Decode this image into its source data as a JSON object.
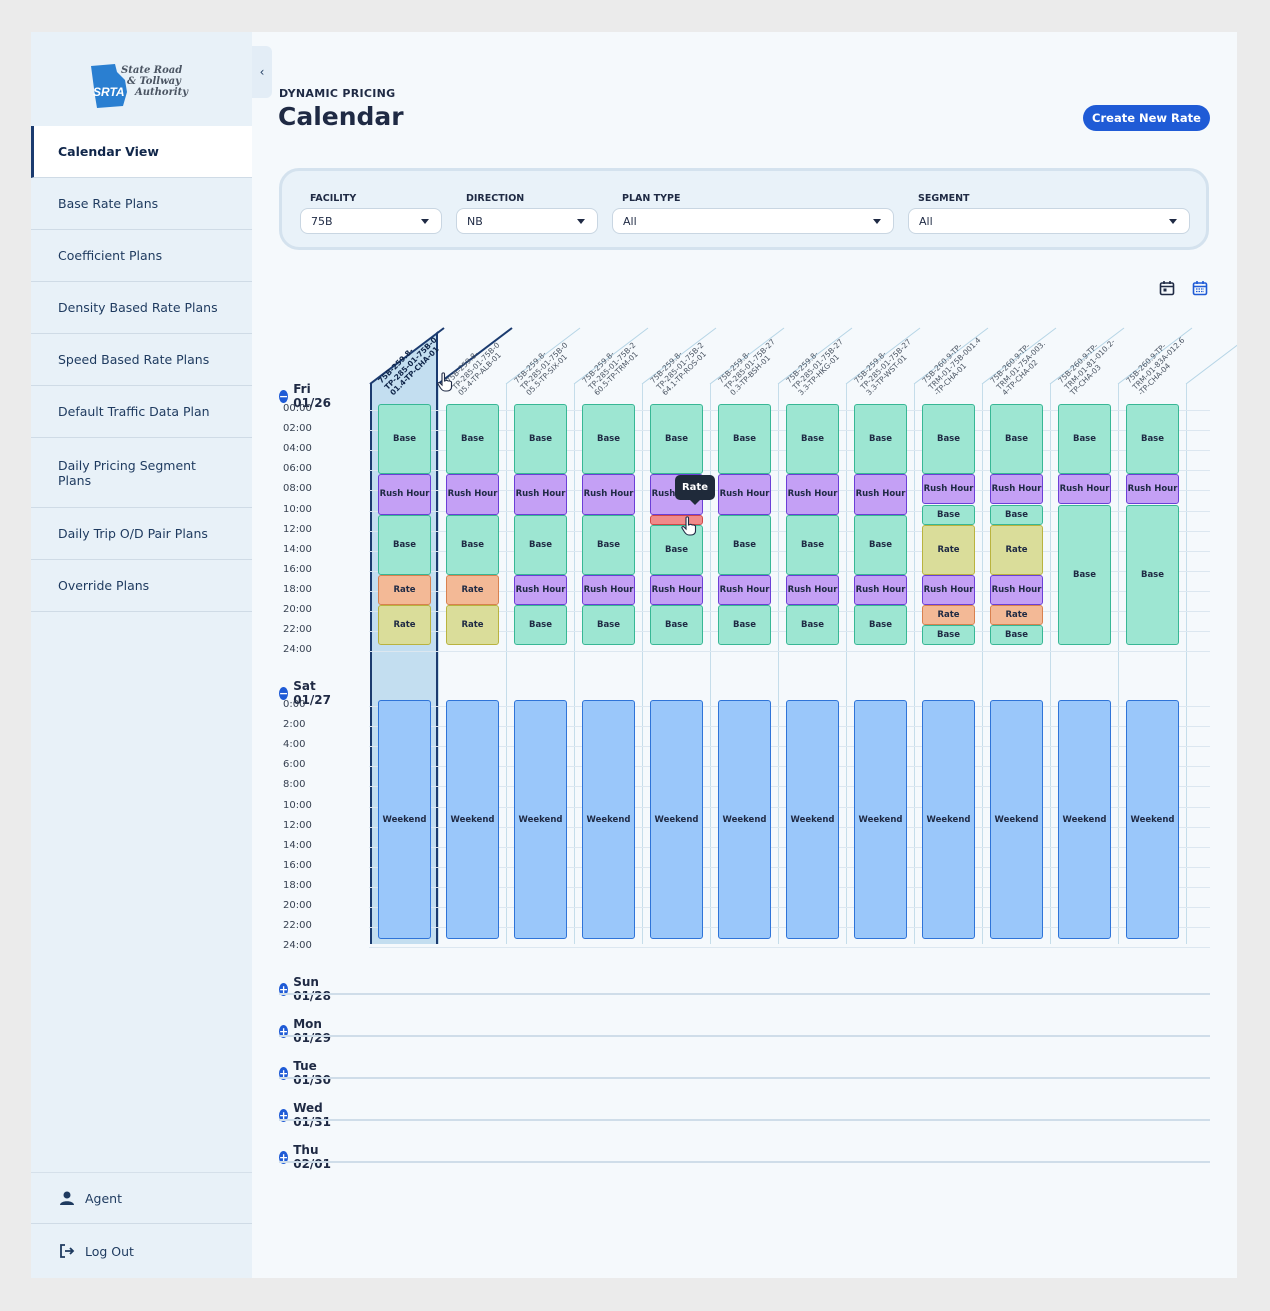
{
  "logo": {
    "line1": "State Road",
    "line2": "& Tollway",
    "line3": "Authority",
    "mark": "SRTA"
  },
  "sidebar": {
    "items": [
      {
        "label": "Calendar View"
      },
      {
        "label": "Base Rate Plans"
      },
      {
        "label": "Coefficient Plans"
      },
      {
        "label": "Density Based Rate Plans"
      },
      {
        "label": "Speed Based Rate Plans"
      },
      {
        "label": "Default Traffic Data Plan"
      },
      {
        "label": "Daily Pricing Segment Plans"
      },
      {
        "label": "Daily Trip O/D Pair Plans"
      },
      {
        "label": "Override Plans"
      }
    ],
    "user_label": "Agent",
    "logout_label": "Log Out"
  },
  "header": {
    "eyebrow": "DYNAMIC PRICING",
    "title": "Calendar",
    "create_label": "Create New Rate"
  },
  "filters": [
    {
      "label": "FACILITY",
      "value": "75B"
    },
    {
      "label": "DIRECTION",
      "value": "NB"
    },
    {
      "label": "PLAN TYPE",
      "value": "All"
    },
    {
      "label": "SEGMENT",
      "value": "All"
    }
  ],
  "columns": [
    "75B-259.8-\nTP-285-01-75B-0\n01.4-TP-CHA-01",
    "75B-259.8-\nTP-285-01-75B-0\n05.4-TP-ALB-01",
    "75B-259.8-\nTP-285-01-75B-0\n05.5-TP-SIX-01",
    "75B-259.8-\nTP-285-01-75B-2\n60.5-TP-TRM-01",
    "75B-259.8-\nTP-285-01-75B-2\n64.1-TP-ROS-01",
    "75B-259.8-\nTP-285-01-75B-27\n0.3-TP-BSH-01",
    "75B-259.8-\nTP-285-01-75B-27\n3.3-TP-HKG-01",
    "75B-259.8-\nTP-285-01-75B-27\n3.3-TP-WST-01",
    "75B-260.9-TP-\nTRM-01-75B-001.4\n-TP-CHA-01",
    "75B-260.9-TP-\nTRM-01-75A-003.\n4-TP-CHA-02",
    "75B-260.9-TP-\nTRM-01-81-010.2-\nTP-CHA-03",
    "75B-260.9-TP-\nTRM-01-83A-012.6\n-TP-CHA-04"
  ],
  "days": {
    "fri": {
      "label": "Fri 01/26"
    },
    "sat": {
      "label": "Sat 01/27"
    },
    "sun": {
      "label": "Sun 01/28"
    },
    "mon": {
      "label": "Mon 01/29"
    },
    "tue": {
      "label": "Tue 01/30"
    },
    "wed": {
      "label": "Wed 01/31"
    },
    "thu": {
      "label": "Thu 02/01"
    }
  },
  "fri_hours": [
    "00:00",
    "02:00",
    "04:00",
    "06:00",
    "08:00",
    "10:00",
    "12:00",
    "14:00",
    "16:00",
    "18:00",
    "20:00",
    "22:00",
    "24:00"
  ],
  "sat_hours": [
    "0:00",
    "2:00",
    "4:00",
    "6:00",
    "8:00",
    "10:00",
    "12:00",
    "14:00",
    "16:00",
    "18:00",
    "20:00",
    "22:00",
    "24:00"
  ],
  "block_labels": {
    "base": "Base",
    "rush": "Rush Hour",
    "rate": "Rate",
    "weekend": "Weekend"
  },
  "fri_schedule": [
    [
      [
        "base",
        0,
        7
      ],
      [
        "rush",
        7,
        11
      ],
      [
        "base",
        11,
        17
      ],
      [
        "rateo",
        17,
        20
      ],
      [
        "ratey",
        20,
        24
      ]
    ],
    [
      [
        "base",
        0,
        7
      ],
      [
        "rush",
        7,
        11
      ],
      [
        "base",
        11,
        17
      ],
      [
        "rateo",
        17,
        20
      ],
      [
        "ratey",
        20,
        24
      ]
    ],
    [
      [
        "base",
        0,
        7
      ],
      [
        "rush",
        7,
        11
      ],
      [
        "base",
        11,
        17
      ],
      [
        "rush",
        17,
        20
      ],
      [
        "base",
        20,
        24
      ]
    ],
    [
      [
        "base",
        0,
        7
      ],
      [
        "rush",
        7,
        11
      ],
      [
        "base",
        11,
        17
      ],
      [
        "rush",
        17,
        20
      ],
      [
        "base",
        20,
        24
      ]
    ],
    [
      [
        "base",
        0,
        7
      ],
      [
        "rush",
        7,
        11
      ],
      [
        "red",
        11,
        12
      ],
      [
        "base",
        12,
        17
      ],
      [
        "rush",
        17,
        20
      ],
      [
        "base",
        20,
        24
      ]
    ],
    [
      [
        "base",
        0,
        7
      ],
      [
        "rush",
        7,
        11
      ],
      [
        "base",
        11,
        17
      ],
      [
        "rush",
        17,
        20
      ],
      [
        "base",
        20,
        24
      ]
    ],
    [
      [
        "base",
        0,
        7
      ],
      [
        "rush",
        7,
        11
      ],
      [
        "base",
        11,
        17
      ],
      [
        "rush",
        17,
        20
      ],
      [
        "base",
        20,
        24
      ]
    ],
    [
      [
        "base",
        0,
        7
      ],
      [
        "rush",
        7,
        11
      ],
      [
        "base",
        11,
        17
      ],
      [
        "rush",
        17,
        20
      ],
      [
        "base",
        20,
        24
      ]
    ],
    [
      [
        "base",
        0,
        7
      ],
      [
        "rush",
        7,
        10
      ],
      [
        "base",
        10,
        12
      ],
      [
        "ratey",
        12,
        17
      ],
      [
        "rush",
        17,
        20
      ],
      [
        "rateo",
        20,
        22
      ],
      [
        "base",
        22,
        24
      ]
    ],
    [
      [
        "base",
        0,
        7
      ],
      [
        "rush",
        7,
        10
      ],
      [
        "base",
        10,
        12
      ],
      [
        "ratey",
        12,
        17
      ],
      [
        "rush",
        17,
        20
      ],
      [
        "rateo",
        20,
        22
      ],
      [
        "base",
        22,
        24
      ]
    ],
    [
      [
        "base",
        0,
        7
      ],
      [
        "rush",
        7,
        10
      ],
      [
        "base",
        10,
        24
      ]
    ],
    [
      [
        "base",
        0,
        7
      ],
      [
        "rush",
        7,
        10
      ],
      [
        "base",
        10,
        24
      ]
    ]
  ],
  "tooltip": {
    "text": "Rate"
  },
  "colors": {
    "accent": "#1f5bd6",
    "base": "#9de6d2",
    "rush": "#c4a0f5",
    "rate_orange": "#f3b996",
    "rate_yellow": "#dadd9a",
    "weekend": "#9ac7fa",
    "selected_column": "#c3def0"
  }
}
